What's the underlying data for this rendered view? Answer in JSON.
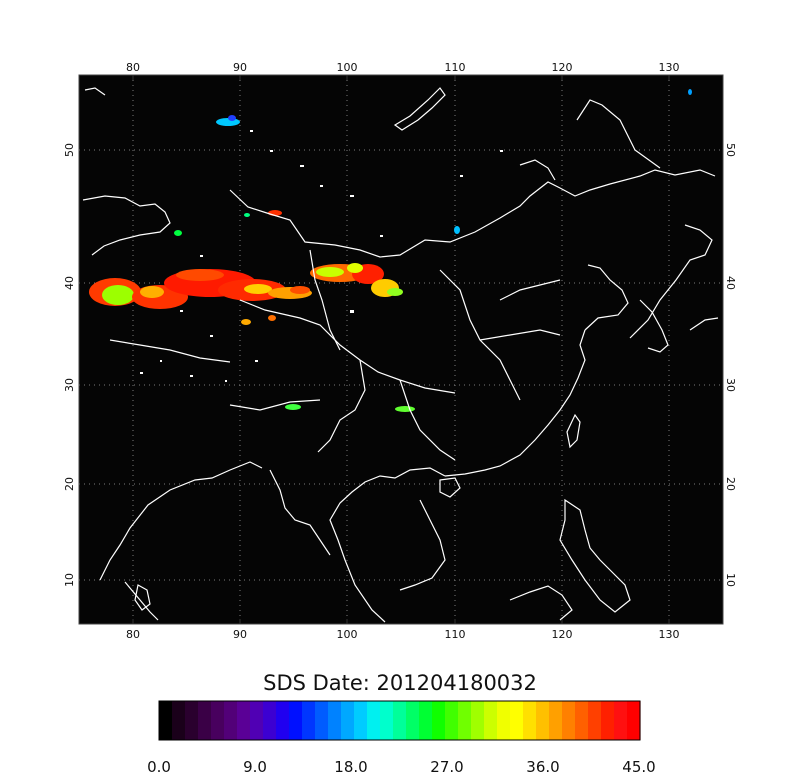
{
  "map": {
    "title": "SDS Date: 201204180032",
    "lon_ticks": [
      "80",
      "90",
      "100",
      "110",
      "120",
      "130"
    ],
    "lat_ticks": [
      "10",
      "20",
      "30",
      "40",
      "50"
    ],
    "lon_range": [
      75,
      135
    ],
    "lat_range": [
      5,
      57
    ],
    "background": "#050505",
    "coastline_color": "#ffffff"
  },
  "colorbar": {
    "min": 0.0,
    "max": 45.0,
    "labels": [
      "0.0",
      "9.0",
      "18.0",
      "27.0",
      "36.0",
      "45.0"
    ],
    "colors": [
      "#000000",
      "#1a001a",
      "#2a002e",
      "#3a0046",
      "#48005e",
      "#520078",
      "#5a0096",
      "#5000b4",
      "#3c00d2",
      "#2000f0",
      "#0010ff",
      "#0036ff",
      "#005cff",
      "#0082ff",
      "#00a8ff",
      "#00ccff",
      "#00f0f0",
      "#00ffcc",
      "#00ff9a",
      "#00ff66",
      "#00ff33",
      "#10ff00",
      "#40ff00",
      "#70ff00",
      "#a0ff00",
      "#ccff00",
      "#f0ff00",
      "#ffff00",
      "#ffe000",
      "#ffc000",
      "#ffa000",
      "#ff8000",
      "#ff6000",
      "#ff4000",
      "#ff2000",
      "#ff1010",
      "#ff0000"
    ]
  }
}
